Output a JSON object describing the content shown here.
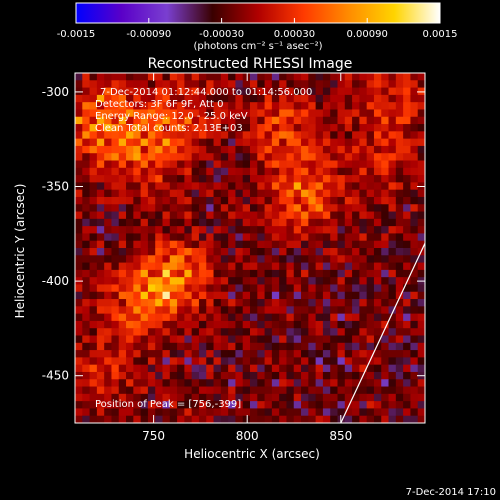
{
  "colorbar": {
    "tick_labels": [
      "-0.0015",
      "-0.00090",
      "-0.00030",
      "0.00030",
      "0.00090",
      "0.0015"
    ],
    "tick_values": [
      -0.0015,
      -0.0009,
      -0.0003,
      0.0003,
      0.0009,
      0.0015
    ],
    "range": [
      -0.0015,
      0.0015
    ],
    "unit_label": "(photons cm⁻² s⁻¹ asec⁻²)",
    "colors": [
      "#0000ff",
      "#5a00c8",
      "#7a3fd0",
      "#3a0000",
      "#b00000",
      "#ff3a00",
      "#ff8c00",
      "#ffd400",
      "#ffffff"
    ]
  },
  "chart_data": {
    "type": "heatmap",
    "title": "Reconstructed RHESSI Image",
    "xlabel": "Heliocentric X (arcsec)",
    "ylabel": "Heliocentric Y (arcsec)",
    "xlim": [
      708,
      895
    ],
    "ylim": [
      -475,
      -290
    ],
    "x_ticks": [
      750,
      800,
      850
    ],
    "y_ticks": [
      -300,
      -350,
      -400,
      -450
    ],
    "x_tick_labels": [
      "750",
      "800",
      "850"
    ],
    "y_tick_labels": [
      "-300",
      "-350",
      "-400",
      "-450"
    ],
    "annotations": [
      "7-Dec-2014 01:12:44.000 to 01:14:56.000",
      "Detectors: 3F 6F 9F, Att 0",
      "Energy Range: 12.0 - 25.0 keV",
      "Clean   Total counts: 2.13E+03"
    ],
    "peak_label": "Position of Peak = [756,-399]",
    "peak": [
      756,
      -399
    ],
    "limb_line": [
      [
        850,
        -475
      ],
      [
        895,
        -380
      ]
    ],
    "sources": [
      {
        "x": 722,
        "y": -315,
        "intensity": 0.0015
      },
      {
        "x": 745,
        "y": -335,
        "intensity": 0.0011
      },
      {
        "x": 763,
        "y": -312,
        "intensity": 0.0009
      },
      {
        "x": 760,
        "y": -398,
        "intensity": 0.0015
      },
      {
        "x": 740,
        "y": -412,
        "intensity": 0.001
      },
      {
        "x": 830,
        "y": -355,
        "intensity": 0.0012
      },
      {
        "x": 820,
        "y": -320,
        "intensity": 0.001
      },
      {
        "x": 878,
        "y": -305,
        "intensity": 0.0009
      },
      {
        "x": 720,
        "y": -450,
        "intensity": 0.0007
      },
      {
        "x": 870,
        "y": -340,
        "intensity": 0.0006
      }
    ]
  },
  "footer": {
    "timestamp": "7-Dec-2014 17:10"
  }
}
